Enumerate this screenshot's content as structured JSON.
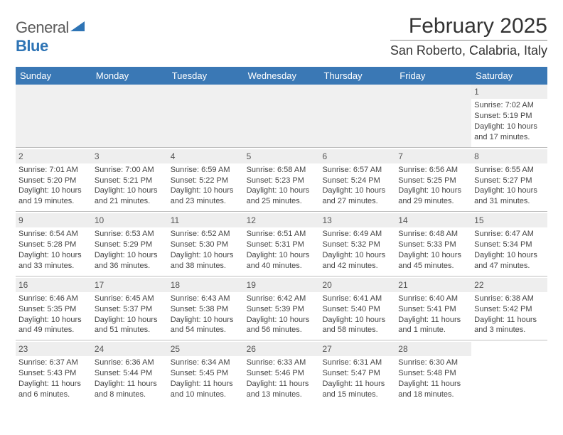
{
  "logo": {
    "general": "General",
    "blue": "Blue"
  },
  "title": "February 2025",
  "location": "San Roberto, Calabria, Italy",
  "weekdays": [
    "Sunday",
    "Monday",
    "Tuesday",
    "Wednesday",
    "Thursday",
    "Friday",
    "Saturday"
  ],
  "colors": {
    "header_bg": "#3a78b5",
    "header_text": "#ffffff",
    "daybar_bg": "#eeeeee",
    "row_border": "#bfbfbf",
    "logo_blue": "#2e74b5",
    "logo_gray": "#5a5a5a",
    "body_text": "#444444"
  },
  "fonts": {
    "body_size_pt": 8,
    "title_size_pt": 22,
    "location_size_pt": 13,
    "weekday_size_pt": 10
  },
  "grid": {
    "rows": 5,
    "cols": 7,
    "first_day_col": 6
  },
  "days": [
    {
      "n": "1",
      "sunrise": "Sunrise: 7:02 AM",
      "sunset": "Sunset: 5:19 PM",
      "daylight": "Daylight: 10 hours and 17 minutes."
    },
    {
      "n": "2",
      "sunrise": "Sunrise: 7:01 AM",
      "sunset": "Sunset: 5:20 PM",
      "daylight": "Daylight: 10 hours and 19 minutes."
    },
    {
      "n": "3",
      "sunrise": "Sunrise: 7:00 AM",
      "sunset": "Sunset: 5:21 PM",
      "daylight": "Daylight: 10 hours and 21 minutes."
    },
    {
      "n": "4",
      "sunrise": "Sunrise: 6:59 AM",
      "sunset": "Sunset: 5:22 PM",
      "daylight": "Daylight: 10 hours and 23 minutes."
    },
    {
      "n": "5",
      "sunrise": "Sunrise: 6:58 AM",
      "sunset": "Sunset: 5:23 PM",
      "daylight": "Daylight: 10 hours and 25 minutes."
    },
    {
      "n": "6",
      "sunrise": "Sunrise: 6:57 AM",
      "sunset": "Sunset: 5:24 PM",
      "daylight": "Daylight: 10 hours and 27 minutes."
    },
    {
      "n": "7",
      "sunrise": "Sunrise: 6:56 AM",
      "sunset": "Sunset: 5:25 PM",
      "daylight": "Daylight: 10 hours and 29 minutes."
    },
    {
      "n": "8",
      "sunrise": "Sunrise: 6:55 AM",
      "sunset": "Sunset: 5:27 PM",
      "daylight": "Daylight: 10 hours and 31 minutes."
    },
    {
      "n": "9",
      "sunrise": "Sunrise: 6:54 AM",
      "sunset": "Sunset: 5:28 PM",
      "daylight": "Daylight: 10 hours and 33 minutes."
    },
    {
      "n": "10",
      "sunrise": "Sunrise: 6:53 AM",
      "sunset": "Sunset: 5:29 PM",
      "daylight": "Daylight: 10 hours and 36 minutes."
    },
    {
      "n": "11",
      "sunrise": "Sunrise: 6:52 AM",
      "sunset": "Sunset: 5:30 PM",
      "daylight": "Daylight: 10 hours and 38 minutes."
    },
    {
      "n": "12",
      "sunrise": "Sunrise: 6:51 AM",
      "sunset": "Sunset: 5:31 PM",
      "daylight": "Daylight: 10 hours and 40 minutes."
    },
    {
      "n": "13",
      "sunrise": "Sunrise: 6:49 AM",
      "sunset": "Sunset: 5:32 PM",
      "daylight": "Daylight: 10 hours and 42 minutes."
    },
    {
      "n": "14",
      "sunrise": "Sunrise: 6:48 AM",
      "sunset": "Sunset: 5:33 PM",
      "daylight": "Daylight: 10 hours and 45 minutes."
    },
    {
      "n": "15",
      "sunrise": "Sunrise: 6:47 AM",
      "sunset": "Sunset: 5:34 PM",
      "daylight": "Daylight: 10 hours and 47 minutes."
    },
    {
      "n": "16",
      "sunrise": "Sunrise: 6:46 AM",
      "sunset": "Sunset: 5:35 PM",
      "daylight": "Daylight: 10 hours and 49 minutes."
    },
    {
      "n": "17",
      "sunrise": "Sunrise: 6:45 AM",
      "sunset": "Sunset: 5:37 PM",
      "daylight": "Daylight: 10 hours and 51 minutes."
    },
    {
      "n": "18",
      "sunrise": "Sunrise: 6:43 AM",
      "sunset": "Sunset: 5:38 PM",
      "daylight": "Daylight: 10 hours and 54 minutes."
    },
    {
      "n": "19",
      "sunrise": "Sunrise: 6:42 AM",
      "sunset": "Sunset: 5:39 PM",
      "daylight": "Daylight: 10 hours and 56 minutes."
    },
    {
      "n": "20",
      "sunrise": "Sunrise: 6:41 AM",
      "sunset": "Sunset: 5:40 PM",
      "daylight": "Daylight: 10 hours and 58 minutes."
    },
    {
      "n": "21",
      "sunrise": "Sunrise: 6:40 AM",
      "sunset": "Sunset: 5:41 PM",
      "daylight": "Daylight: 11 hours and 1 minute."
    },
    {
      "n": "22",
      "sunrise": "Sunrise: 6:38 AM",
      "sunset": "Sunset: 5:42 PM",
      "daylight": "Daylight: 11 hours and 3 minutes."
    },
    {
      "n": "23",
      "sunrise": "Sunrise: 6:37 AM",
      "sunset": "Sunset: 5:43 PM",
      "daylight": "Daylight: 11 hours and 6 minutes."
    },
    {
      "n": "24",
      "sunrise": "Sunrise: 6:36 AM",
      "sunset": "Sunset: 5:44 PM",
      "daylight": "Daylight: 11 hours and 8 minutes."
    },
    {
      "n": "25",
      "sunrise": "Sunrise: 6:34 AM",
      "sunset": "Sunset: 5:45 PM",
      "daylight": "Daylight: 11 hours and 10 minutes."
    },
    {
      "n": "26",
      "sunrise": "Sunrise: 6:33 AM",
      "sunset": "Sunset: 5:46 PM",
      "daylight": "Daylight: 11 hours and 13 minutes."
    },
    {
      "n": "27",
      "sunrise": "Sunrise: 6:31 AM",
      "sunset": "Sunset: 5:47 PM",
      "daylight": "Daylight: 11 hours and 15 minutes."
    },
    {
      "n": "28",
      "sunrise": "Sunrise: 6:30 AM",
      "sunset": "Sunset: 5:48 PM",
      "daylight": "Daylight: 11 hours and 18 minutes."
    }
  ]
}
